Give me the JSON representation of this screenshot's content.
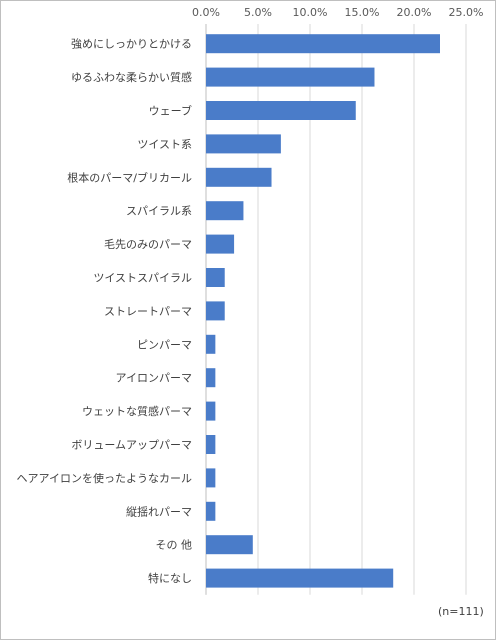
{
  "chart_data": {
    "type": "bar",
    "orientation": "horizontal",
    "categories": [
      "強めにしっかりとかける",
      "ゆるふわな柔らかい質感",
      "ウェーブ",
      "ツイスト系",
      "根本のパーマ/ブリカール",
      "スパイラル系",
      "毛先のみのパーマ",
      "ツイストスパイラル",
      "ストレートパーマ",
      "ピンパーマ",
      "アイロンパーマ",
      "ウェットな質感パーマ",
      "ボリュームアップパーマ",
      "ヘアアイロンを使ったようなカール",
      "縦揺れパーマ",
      "その 他",
      "特になし"
    ],
    "values": [
      22.5,
      16.2,
      14.4,
      7.2,
      6.3,
      3.6,
      2.7,
      1.8,
      1.8,
      0.9,
      0.9,
      0.9,
      0.9,
      0.9,
      0.9,
      4.5,
      18.0
    ],
    "xlim": [
      0,
      25
    ],
    "ticks": [
      "0.0%",
      "5.0%",
      "10.0%",
      "15.0%",
      "20.0%",
      "25.0%"
    ],
    "tick_values": [
      0,
      5,
      10,
      15,
      20,
      25
    ],
    "axis_position": "top",
    "bar_color": "#4a7cc9",
    "grid": true,
    "sample_note": "(n=111)"
  }
}
